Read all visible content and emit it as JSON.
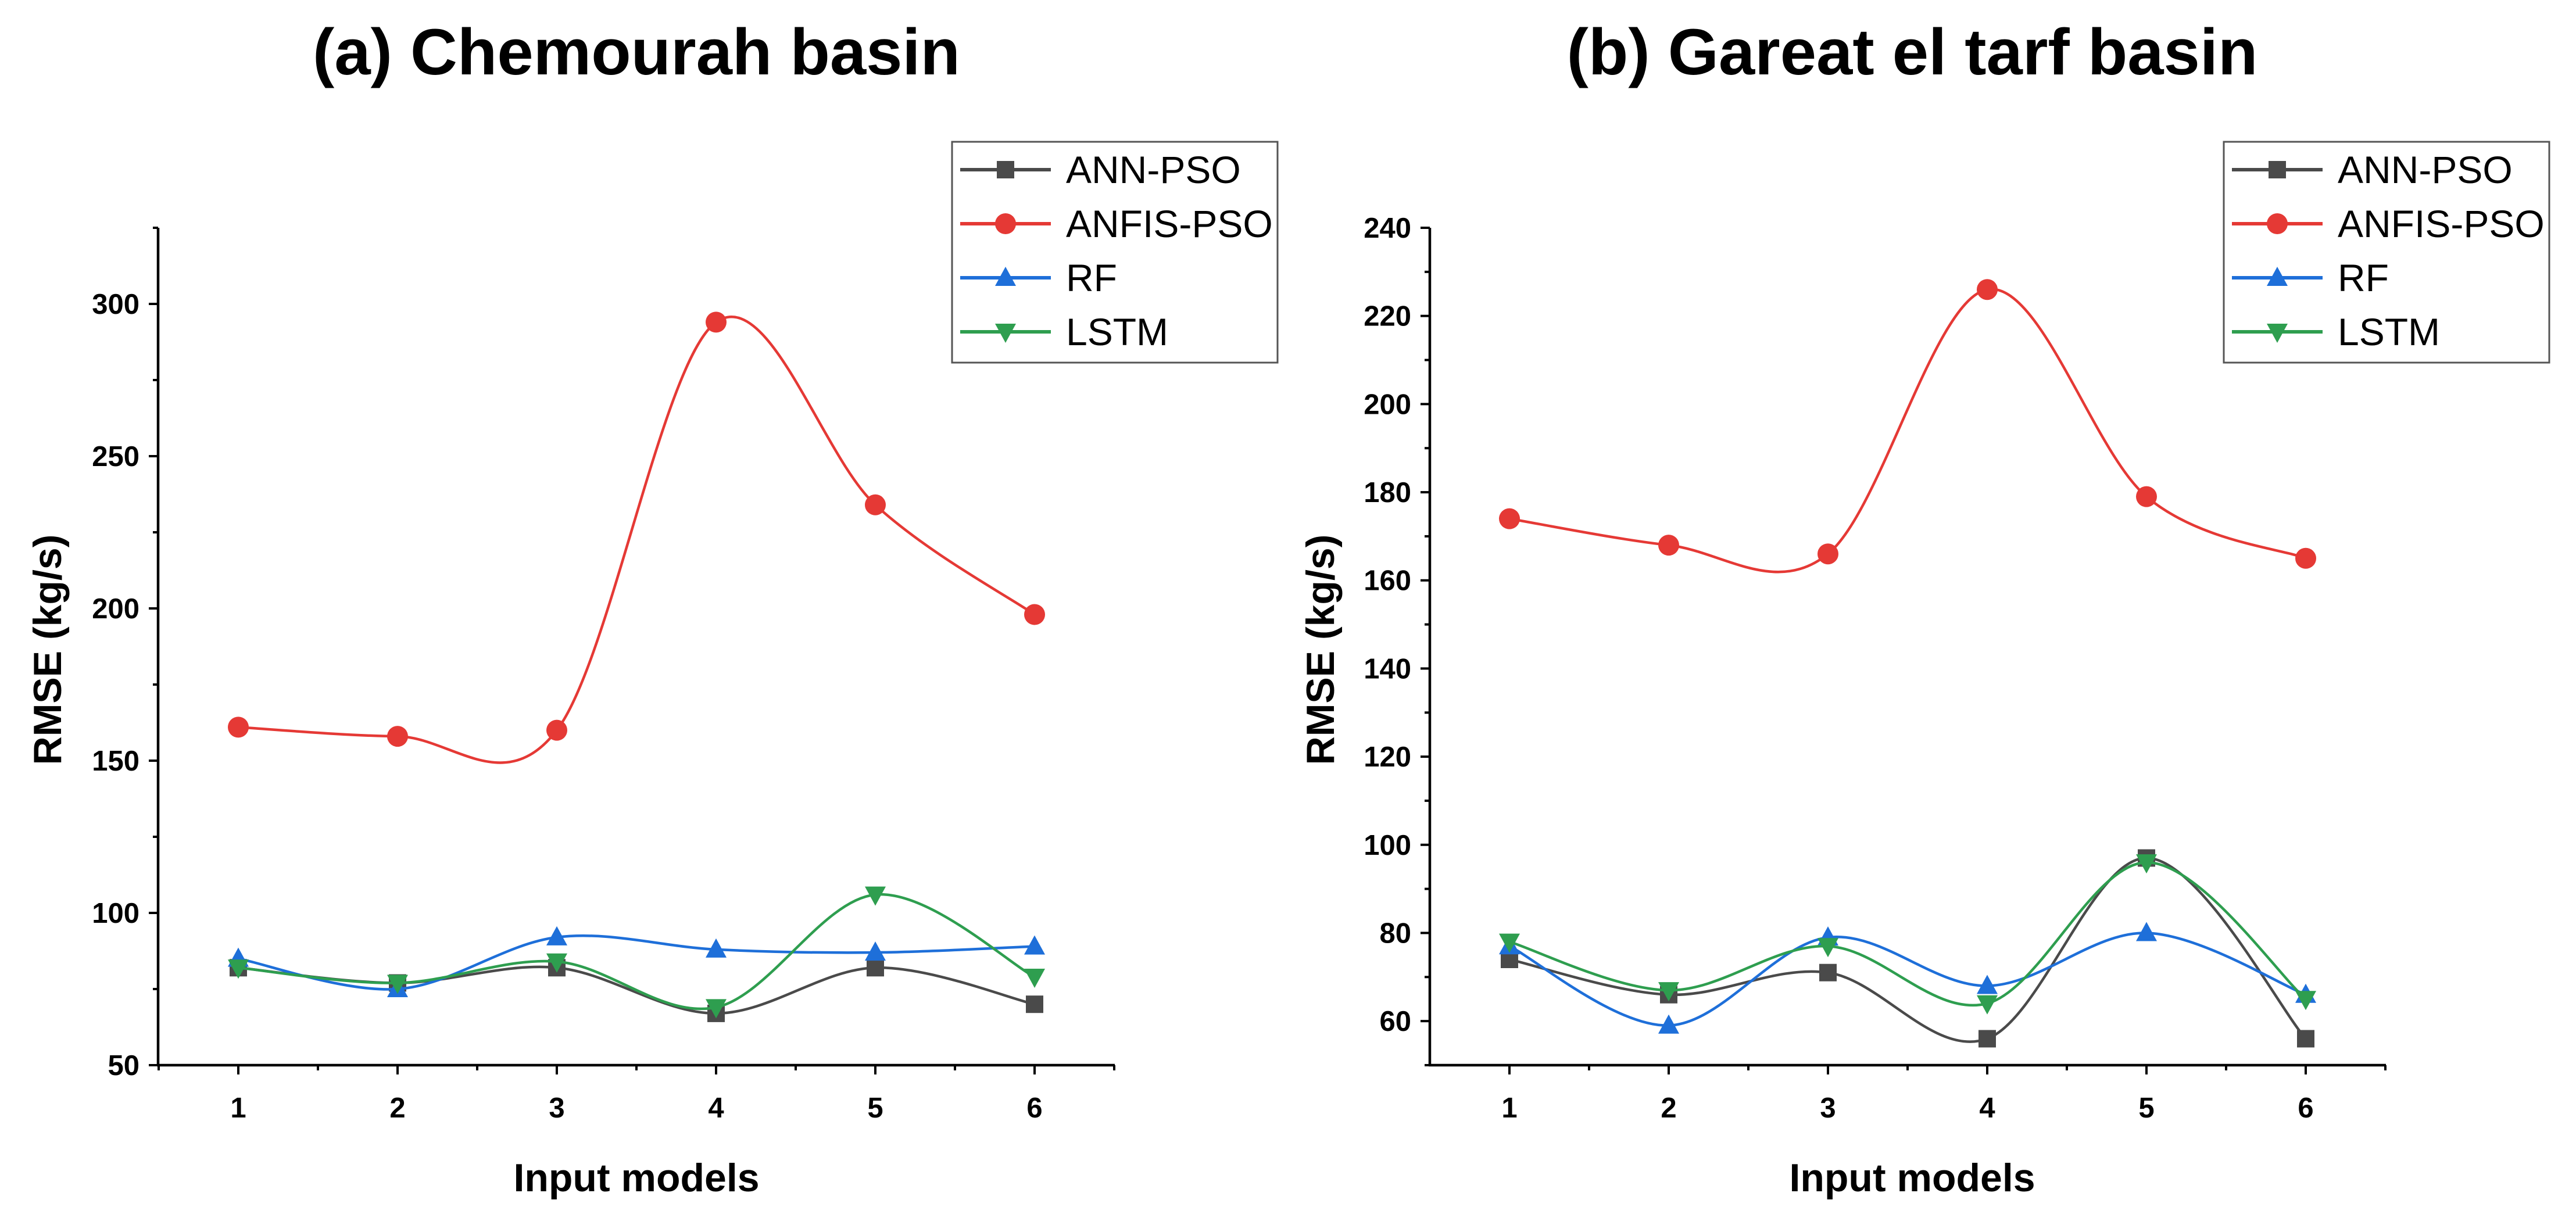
{
  "chart_data": [
    {
      "type": "line",
      "title": "(a) Chemourah basin",
      "xlabel": "Input models",
      "ylabel": "RMSE (kg/s)",
      "categories": [
        "1",
        "2",
        "3",
        "4",
        "5",
        "6"
      ],
      "ylim": [
        50,
        325
      ],
      "yticks": [
        50,
        100,
        150,
        200,
        250,
        300
      ],
      "legend_position": "top-right",
      "series": [
        {
          "name": "ANN-PSO",
          "color": "#4a4a4a",
          "marker": "square",
          "values": [
            82,
            77,
            82,
            67,
            82,
            70
          ]
        },
        {
          "name": "ANFIS-PSO",
          "color": "#e53935",
          "marker": "circle",
          "values": [
            161,
            158,
            160,
            294,
            234,
            198
          ]
        },
        {
          "name": "RF",
          "color": "#1e6fd9",
          "marker": "triangle-up",
          "values": [
            85,
            75,
            92,
            88,
            87,
            89
          ]
        },
        {
          "name": "LSTM",
          "color": "#2e9e4f",
          "marker": "triangle-down",
          "values": [
            82,
            77,
            84,
            69,
            106,
            79
          ]
        }
      ]
    },
    {
      "type": "line",
      "title": "(b) Gareat el tarf basin",
      "xlabel": "Input models",
      "ylabel": "RMSE (kg/s)",
      "categories": [
        "1",
        "2",
        "3",
        "4",
        "5",
        "6"
      ],
      "ylim": [
        50,
        240
      ],
      "yticks": [
        60,
        80,
        100,
        120,
        140,
        160,
        180,
        200,
        220,
        240
      ],
      "legend_position": "top-right",
      "series": [
        {
          "name": "ANN-PSO",
          "color": "#4a4a4a",
          "marker": "square",
          "values": [
            74,
            66,
            71,
            56,
            97,
            56
          ]
        },
        {
          "name": "ANFIS-PSO",
          "color": "#e53935",
          "marker": "circle",
          "values": [
            174,
            168,
            166,
            226,
            179,
            165
          ]
        },
        {
          "name": "RF",
          "color": "#1e6fd9",
          "marker": "triangle-up",
          "values": [
            77,
            59,
            79,
            68,
            80,
            66
          ]
        },
        {
          "name": "LSTM",
          "color": "#2e9e4f",
          "marker": "triangle-down",
          "values": [
            78,
            67,
            77,
            64,
            96,
            65
          ]
        }
      ]
    }
  ]
}
